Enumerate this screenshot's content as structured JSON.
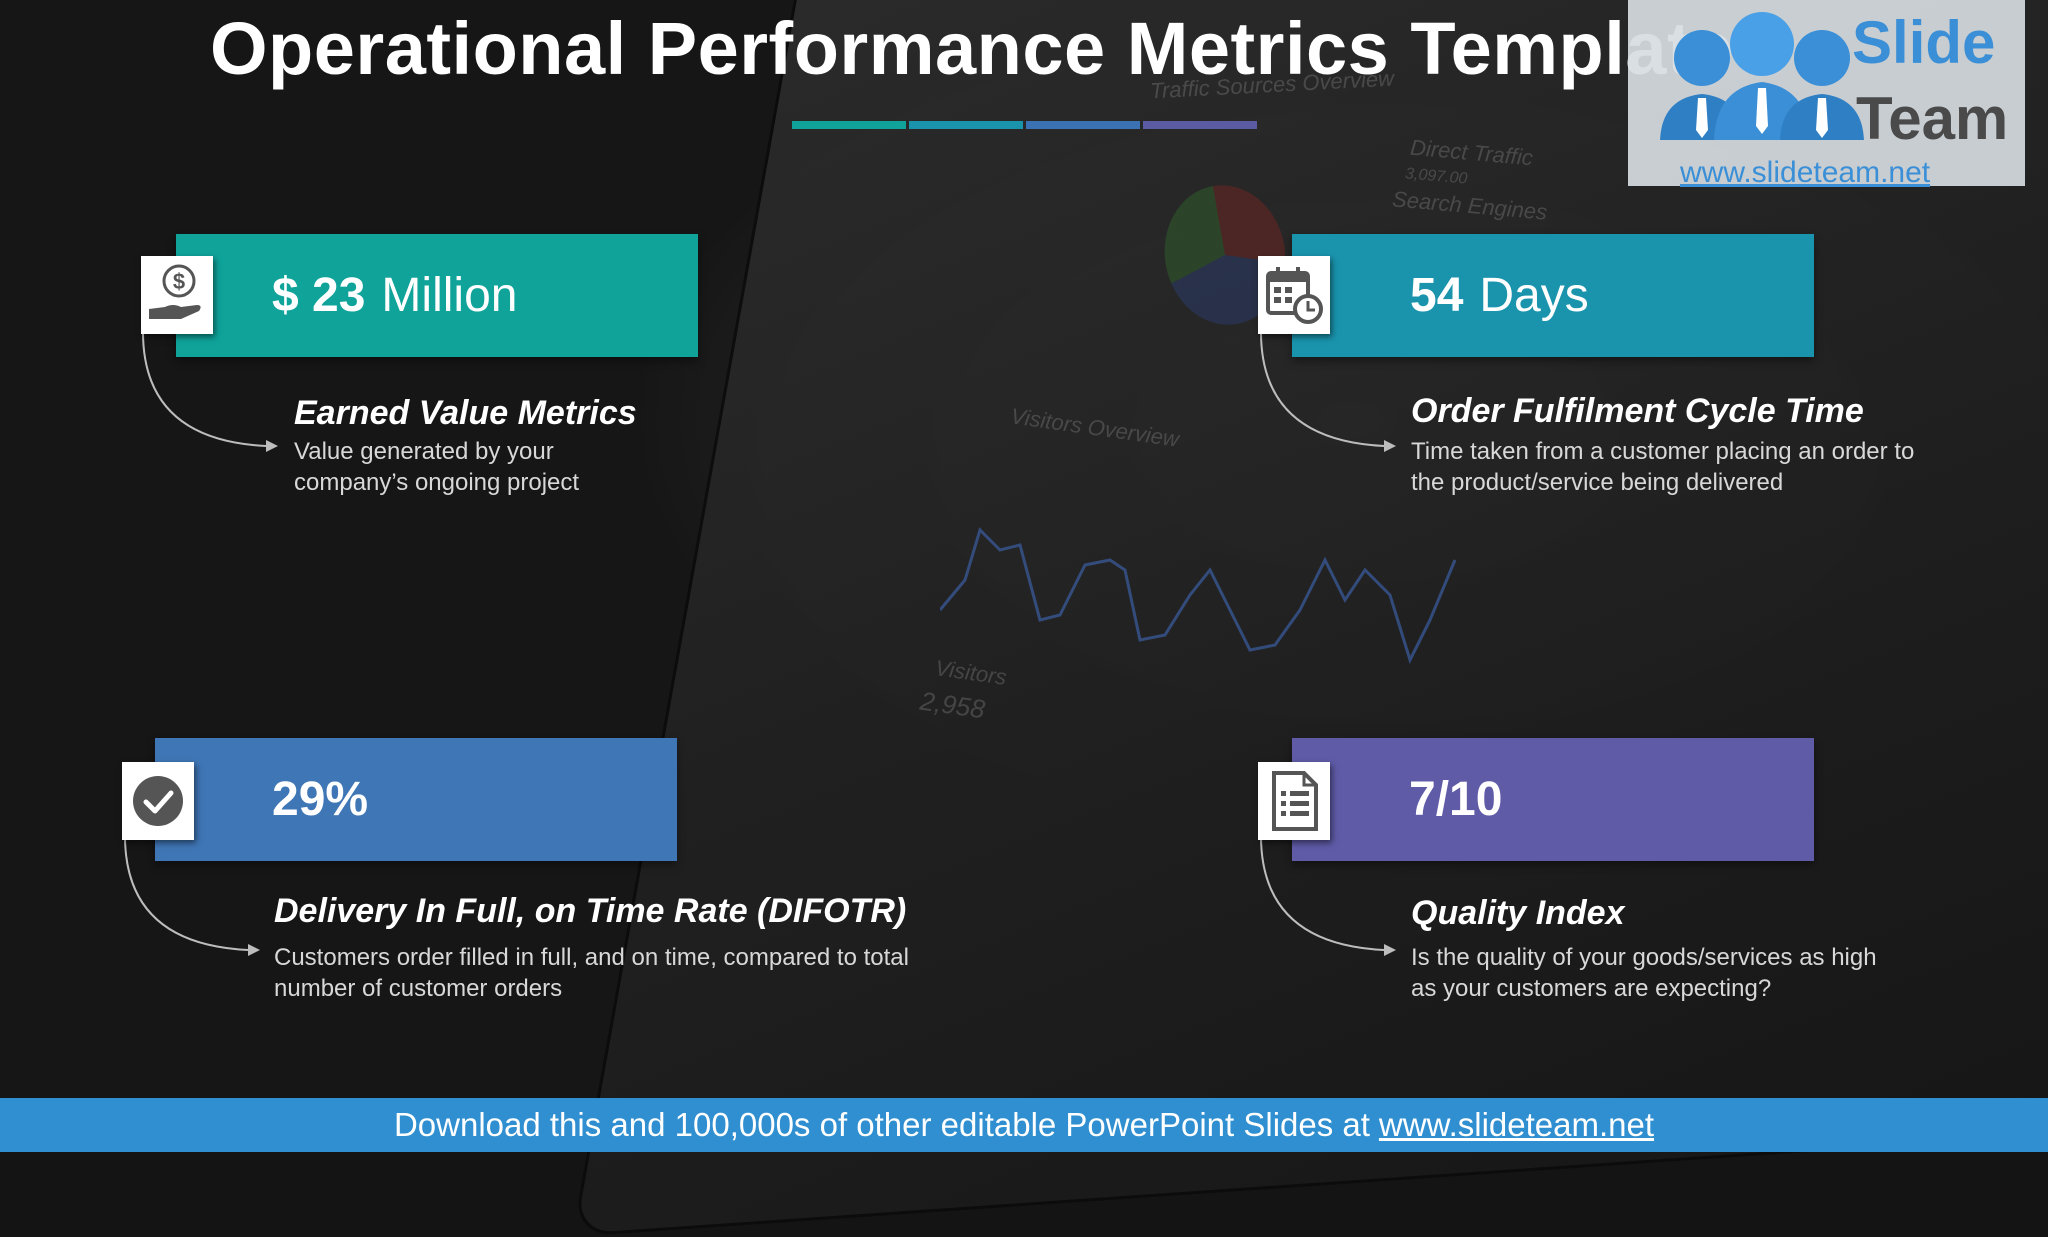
{
  "title": "Operational Performance Metrics Template",
  "title_underline_colors": [
    "#0fa39a",
    "#1a94ad",
    "#3a72b3",
    "#5a5ba2"
  ],
  "logo": {
    "line1": "Slide",
    "line2": "Team",
    "url": "www.slideteam.net"
  },
  "background_text": {
    "channel_overview": "Traffic Sources Overview",
    "direct_traffic": "Direct Traffic",
    "direct_value": "3,097.00",
    "search_engines": "Search Engines",
    "visitors_overview": "Visitors Overview",
    "visitors": "Visitors",
    "visitors_value": "2,958"
  },
  "metrics": [
    {
      "value": "$ 23",
      "unit": "Million",
      "title": "Earned Value Metrics",
      "description": "Value generated by your company’s ongoing project",
      "color": "#0fa39a",
      "icon": "money-hand-icon"
    },
    {
      "value": "54",
      "unit": "Days",
      "title": "Order Fulfilment Cycle Time",
      "description": "Time taken from a customer placing an order to the product/service being delivered",
      "color": "#1a94ad",
      "icon": "calendar-clock-icon"
    },
    {
      "value": "29%",
      "unit": "",
      "title": "Delivery In Full, on Time Rate (DIFOTR)",
      "description": "Customers order filled in full, and on time, compared to total number of customer orders",
      "color": "#3f76b5",
      "icon": "check-circle-icon"
    },
    {
      "value": "7/10",
      "unit": "",
      "title": "Quality Index",
      "description": "Is the quality of your goods/services as high as your customers are expecting?",
      "color": "#5f5ba7",
      "icon": "document-list-icon"
    }
  ],
  "footer": {
    "text": "Download this and 100,000s of other editable PowerPoint Slides at",
    "url": "www.slideteam.net"
  }
}
